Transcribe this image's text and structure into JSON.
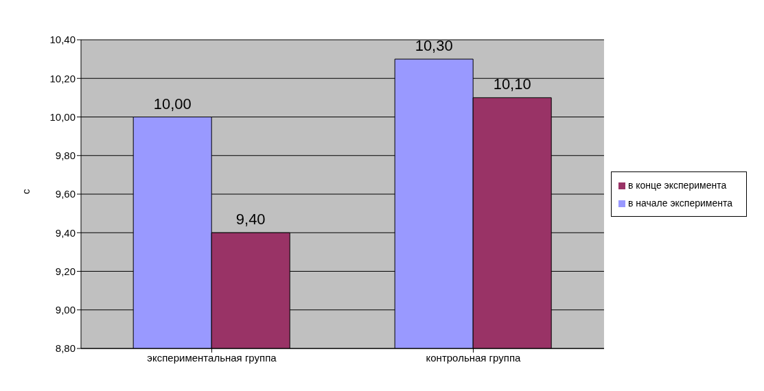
{
  "chart_data": {
    "type": "bar",
    "ylabel": "с",
    "categories": [
      "экспериментальная группа",
      "контрольная группа"
    ],
    "series": [
      {
        "name": "в начале  эксперимента",
        "color": "#9999ff",
        "values": [
          10.0,
          10.3
        ],
        "value_labels": [
          "10,00",
          "10,30"
        ]
      },
      {
        "name": "в конце  эксперимента",
        "color": "#993366",
        "values": [
          9.4,
          10.1
        ],
        "value_labels": [
          "9,40",
          "10,10"
        ]
      }
    ],
    "ylim": [
      8.8,
      10.4
    ],
    "yticks": [
      {
        "value": 8.8,
        "label": "8,80"
      },
      {
        "value": 9.0,
        "label": "9,00"
      },
      {
        "value": 9.2,
        "label": "9,20"
      },
      {
        "value": 9.4,
        "label": "9,40"
      },
      {
        "value": 9.6,
        "label": "9,60"
      },
      {
        "value": 9.8,
        "label": "9,80"
      },
      {
        "value": 10.0,
        "label": "10,00"
      },
      {
        "value": 10.2,
        "label": "10,20"
      },
      {
        "value": 10.4,
        "label": "10,40"
      }
    ],
    "grid": "y",
    "legend": "right"
  }
}
